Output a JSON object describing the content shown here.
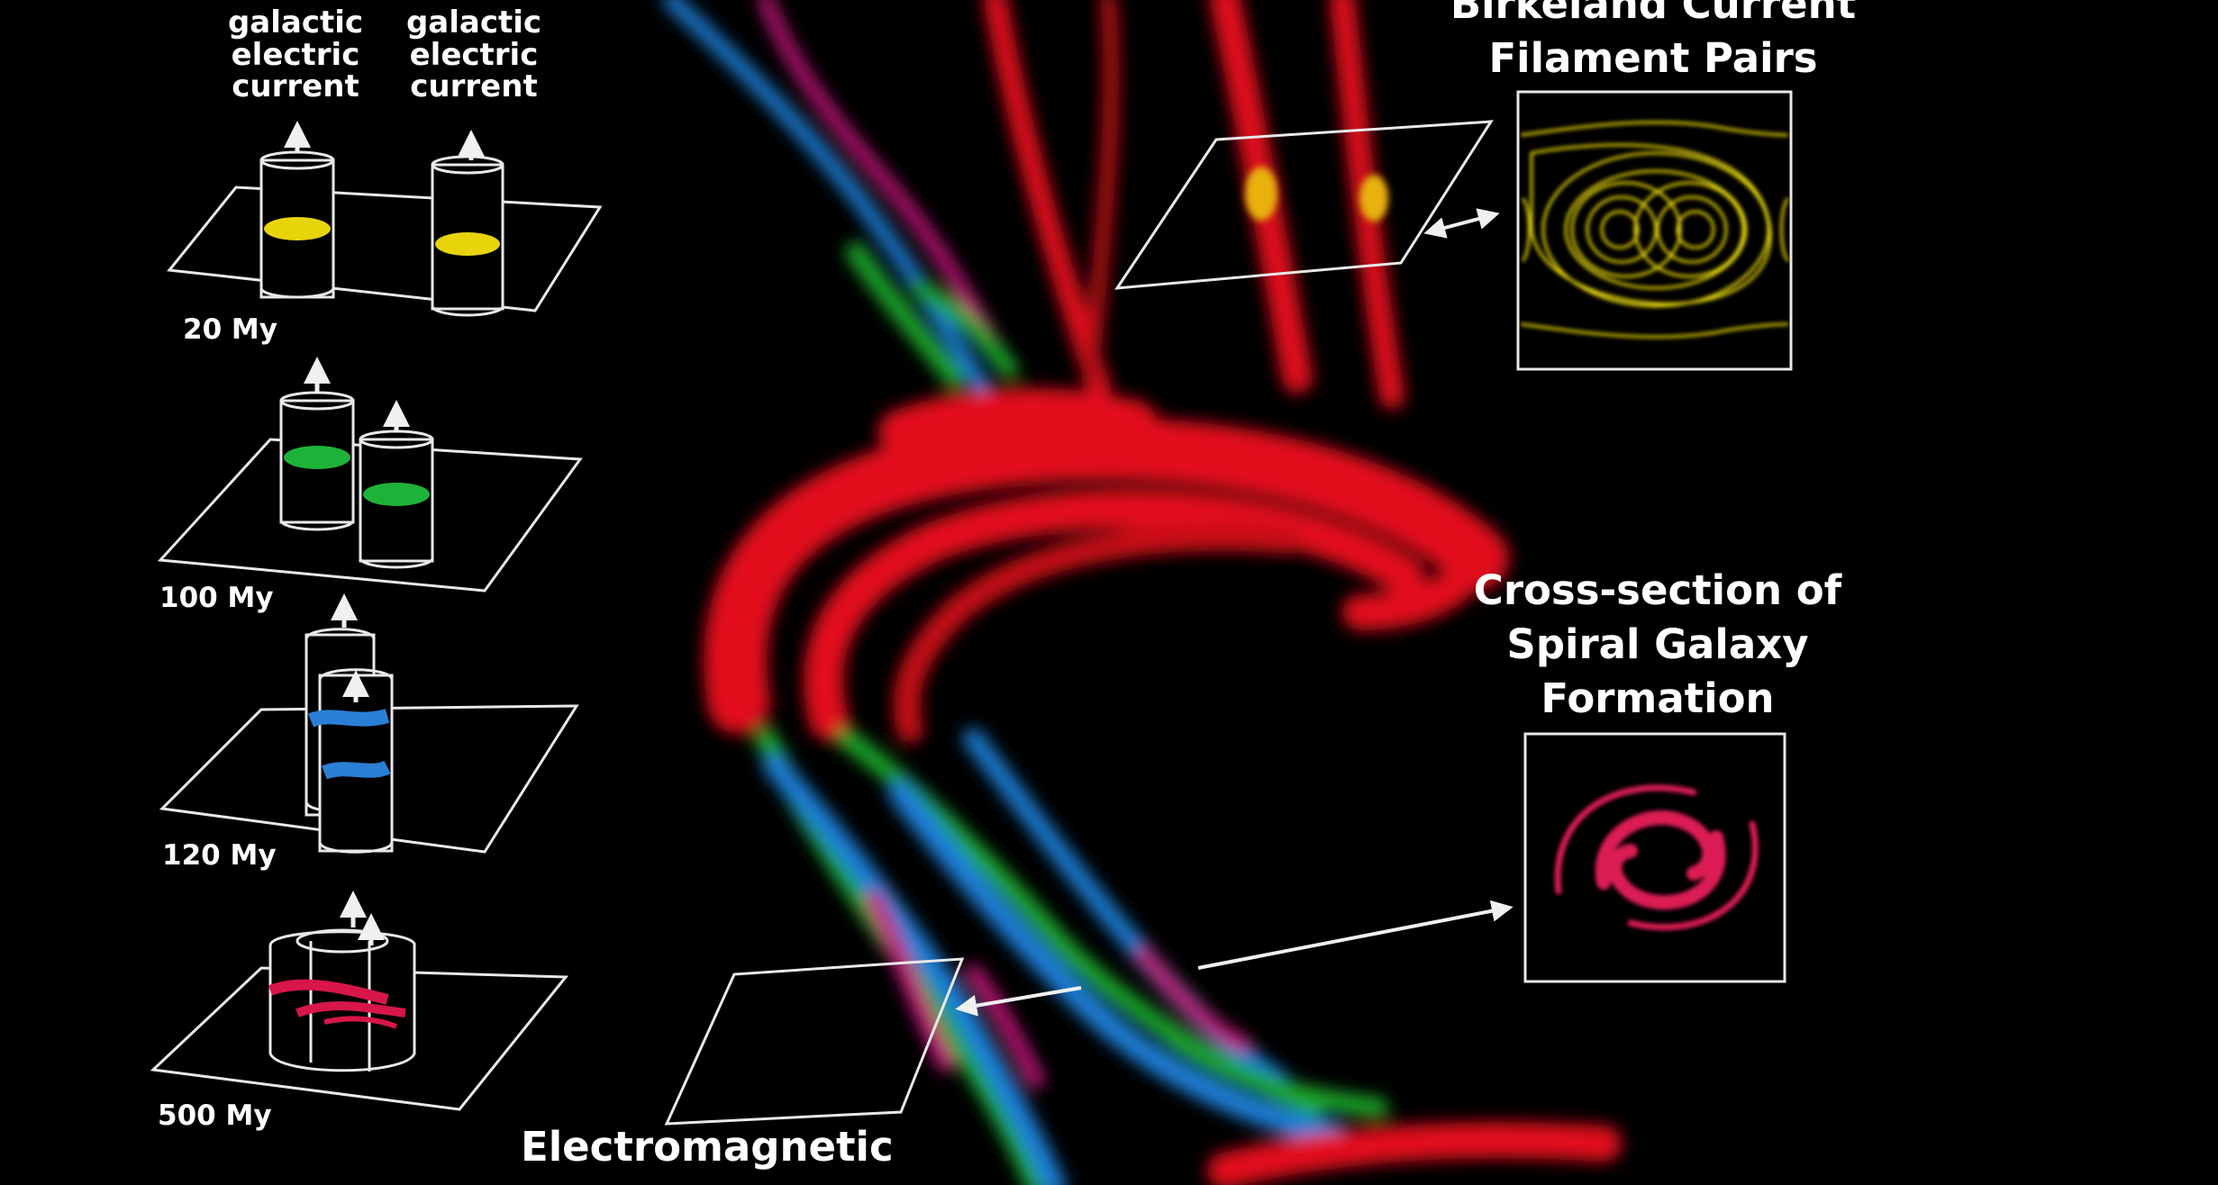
{
  "labels": {
    "current_left": [
      "galactic",
      "electric",
      "current"
    ],
    "current_right": [
      "galactic",
      "electric",
      "current"
    ],
    "times": [
      "20 My",
      "100 My",
      "120 My",
      "500 My"
    ],
    "birkeland_title": [
      "Birkeland Current",
      "Filament Pairs"
    ],
    "spiral_title": [
      "Cross-section of",
      "Spiral Galaxy",
      "Formation"
    ],
    "em_title": "Electromagnetic"
  },
  "colors": {
    "background": "#000000",
    "filament_red": "#e3101c",
    "filament_blue": "#1e7fd8",
    "filament_green": "#1fa82a",
    "filament_magenta": "#c3147a",
    "disk_yellow": "#e8d40a",
    "disk_green": "#1fb23a",
    "disk_blue": "#2a80d6",
    "disk_pink": "#d7164a",
    "outline": "#e8e8e8"
  }
}
